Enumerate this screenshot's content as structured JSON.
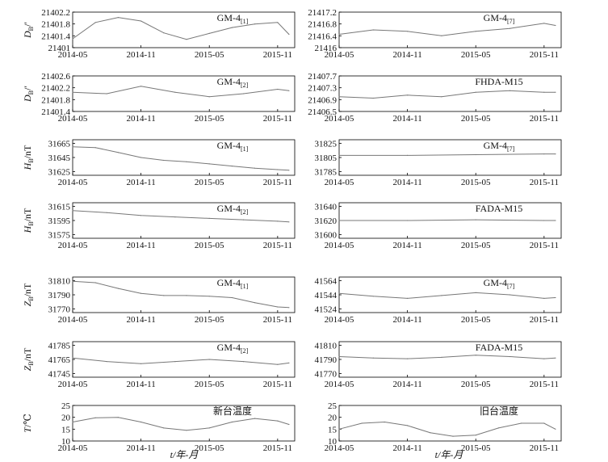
{
  "x_axis_label": "t/年-月",
  "x_tick_labels": [
    "2014-05",
    "2014-11",
    "2015-05",
    "2015-11"
  ],
  "chart_data": [
    {
      "type": "line",
      "column": "left",
      "ylabel_main": "D",
      "ylabel_sub": "B",
      "ylabel_unit": "/′",
      "title_main": "GM-4",
      "title_sub": "[1]",
      "yticks": [
        "21402.2",
        "21401.8",
        "21401.4",
        "21401"
      ],
      "ylim": [
        21401,
        21402.2
      ],
      "x": [
        "2014-05",
        "2014-07",
        "2014-09",
        "2014-11",
        "2015-01",
        "2015-03",
        "2015-05",
        "2015-07",
        "2015-09",
        "2015-11",
        "2015-12"
      ],
      "y": [
        21401.3,
        21401.85,
        21402.02,
        21401.9,
        21401.5,
        21401.28,
        21401.48,
        21401.68,
        21401.8,
        21401.85,
        21401.45
      ]
    },
    {
      "type": "line",
      "column": "right",
      "ylabel_main": "",
      "ylabel_sub": "",
      "ylabel_unit": "",
      "title_main": "GM-4",
      "title_sub": "[7]",
      "yticks": [
        "21417.2",
        "21416.8",
        "21416.4",
        "21416"
      ],
      "ylim": [
        21416,
        21417.2
      ],
      "x": [
        "2014-05",
        "2014-08",
        "2014-11",
        "2015-02",
        "2015-05",
        "2015-08",
        "2015-11",
        "2015-12"
      ],
      "y": [
        21416.45,
        21416.6,
        21416.55,
        21416.4,
        21416.55,
        21416.65,
        21416.82,
        21416.75
      ]
    },
    {
      "type": "line",
      "column": "left",
      "ylabel_main": "D",
      "ylabel_sub": "B",
      "ylabel_unit": "/′",
      "title_main": "GM-4",
      "title_sub": "[2]",
      "yticks": [
        "21402.6",
        "21402.2",
        "21401.8",
        "21401.4"
      ],
      "ylim": [
        21401.4,
        21402.6
      ],
      "x": [
        "2014-05",
        "2014-08",
        "2014-11",
        "2015-02",
        "2015-05",
        "2015-08",
        "2015-11",
        "2015-12"
      ],
      "y": [
        21402.05,
        21402.0,
        21402.25,
        21402.05,
        21401.9,
        21402.0,
        21402.15,
        21402.1
      ]
    },
    {
      "type": "line",
      "column": "right",
      "ylabel_main": "",
      "ylabel_sub": "",
      "ylabel_unit": "",
      "title_main": "FHDA-M15",
      "title_sub": "",
      "yticks": [
        "21407.7",
        "21407.3",
        "21406.9",
        "21406.5"
      ],
      "ylim": [
        21406.5,
        21407.7
      ],
      "x": [
        "2014-05",
        "2014-08",
        "2014-11",
        "2015-02",
        "2015-05",
        "2015-08",
        "2015-11",
        "2015-12"
      ],
      "y": [
        21407.0,
        21406.95,
        21407.05,
        21407.0,
        21407.15,
        21407.2,
        21407.15,
        21407.15
      ]
    },
    {
      "type": "line",
      "column": "left",
      "ylabel_main": "H",
      "ylabel_sub": "B",
      "ylabel_unit": "/nT",
      "title_main": "GM-4",
      "title_sub": "[1]",
      "yticks": [
        "31665",
        "31645",
        "31625"
      ],
      "ylim": [
        31620,
        31670
      ],
      "x": [
        "2014-05",
        "2014-07",
        "2014-09",
        "2014-11",
        "2015-01",
        "2015-03",
        "2015-05",
        "2015-07",
        "2015-09",
        "2015-11",
        "2015-12"
      ],
      "y": [
        31660,
        31659,
        31652,
        31645,
        31641,
        31639,
        31636,
        31633,
        31630,
        31628,
        31627
      ]
    },
    {
      "type": "line",
      "column": "right",
      "ylabel_main": "",
      "ylabel_sub": "",
      "ylabel_unit": "",
      "title_main": "GM-4",
      "title_sub": "[7]",
      "yticks": [
        "31825",
        "31805",
        "31785"
      ],
      "ylim": [
        31780,
        31830
      ],
      "x": [
        "2014-05",
        "2014-11",
        "2015-05",
        "2015-11",
        "2015-12"
      ],
      "y": [
        31808,
        31808,
        31809,
        31810,
        31810
      ]
    },
    {
      "type": "line",
      "column": "left",
      "ylabel_main": "H",
      "ylabel_sub": "B",
      "ylabel_unit": "/nT",
      "title_main": "GM-4",
      "title_sub": "[2]",
      "yticks": [
        "31615",
        "31595",
        "31575"
      ],
      "ylim": [
        31570,
        31620
      ],
      "x": [
        "2014-05",
        "2014-08",
        "2014-11",
        "2015-02",
        "2015-05",
        "2015-08",
        "2015-11",
        "2015-12"
      ],
      "y": [
        31609,
        31606,
        31602,
        31600,
        31598,
        31596,
        31594,
        31593
      ]
    },
    {
      "type": "line",
      "column": "right",
      "ylabel_main": "",
      "ylabel_sub": "",
      "ylabel_unit": "",
      "title_main": "FADA-M15",
      "title_sub": "",
      "yticks": [
        "31640",
        "31620",
        "31600"
      ],
      "ylim": [
        31595,
        31645
      ],
      "x": [
        "2014-05",
        "2014-11",
        "2015-05",
        "2015-11",
        "2015-12"
      ],
      "y": [
        31620,
        31620,
        31621,
        31620,
        31620
      ]
    },
    {
      "type": "line",
      "column": "left",
      "ylabel_main": "Z",
      "ylabel_sub": "B",
      "ylabel_unit": "/nT",
      "title_main": "GM-4",
      "title_sub": "[1]",
      "yticks": [
        "31810",
        "31790",
        "31770"
      ],
      "ylim": [
        31765,
        31815
      ],
      "x": [
        "2014-05",
        "2014-07",
        "2014-09",
        "2014-11",
        "2015-01",
        "2015-03",
        "2015-05",
        "2015-07",
        "2015-09",
        "2015-11",
        "2015-12"
      ],
      "y": [
        31809,
        31807,
        31799,
        31792,
        31789,
        31789,
        31788,
        31786,
        31779,
        31773,
        31772
      ]
    },
    {
      "type": "line",
      "column": "right",
      "ylabel_main": "",
      "ylabel_sub": "",
      "ylabel_unit": "",
      "title_main": "GM-4",
      "title_sub": "[7]",
      "yticks": [
        "41564",
        "41544",
        "41524"
      ],
      "ylim": [
        41519,
        41569
      ],
      "x": [
        "2014-05",
        "2014-08",
        "2014-11",
        "2015-02",
        "2015-05",
        "2015-08",
        "2015-11",
        "2015-12"
      ],
      "y": [
        41546,
        41542,
        41539,
        41543,
        41547,
        41544,
        41539,
        41540
      ]
    },
    {
      "type": "line",
      "column": "left",
      "ylabel_main": "Z",
      "ylabel_sub": "B",
      "ylabel_unit": "/nT",
      "title_main": "GM-4",
      "title_sub": "[2]",
      "yticks": [
        "41785",
        "41765",
        "41745"
      ],
      "ylim": [
        41740,
        41790
      ],
      "x": [
        "2014-05",
        "2014-08",
        "2014-11",
        "2015-02",
        "2015-05",
        "2015-08",
        "2015-11",
        "2015-12"
      ],
      "y": [
        41767,
        41762,
        41759,
        41762,
        41765,
        41762,
        41758,
        41760
      ]
    },
    {
      "type": "line",
      "column": "right",
      "ylabel_main": "",
      "ylabel_sub": "",
      "ylabel_unit": "",
      "title_main": "FADA-M15",
      "title_sub": "",
      "yticks": [
        "41810",
        "41790",
        "41770"
      ],
      "ylim": [
        41765,
        41815
      ],
      "x": [
        "2014-05",
        "2014-08",
        "2014-11",
        "2015-02",
        "2015-05",
        "2015-08",
        "2015-11",
        "2015-12"
      ],
      "y": [
        41794,
        41792,
        41791,
        41793,
        41796,
        41794,
        41791,
        41792
      ]
    },
    {
      "type": "line",
      "column": "left",
      "ylabel_main": "T",
      "ylabel_sub": "",
      "ylabel_unit": "/℃",
      "title_main": "新台温度",
      "title_sub": "",
      "yticks": [
        "25",
        "20",
        "15",
        "10"
      ],
      "ylim": [
        10,
        25
      ],
      "x": [
        "2014-05",
        "2014-07",
        "2014-09",
        "2014-11",
        "2015-01",
        "2015-03",
        "2015-05",
        "2015-07",
        "2015-09",
        "2015-11",
        "2015-12"
      ],
      "y": [
        18,
        19.8,
        20,
        18,
        15.5,
        14.5,
        15.5,
        18,
        19.5,
        18.5,
        17
      ]
    },
    {
      "type": "line",
      "column": "right",
      "ylabel_main": "",
      "ylabel_sub": "",
      "ylabel_unit": "",
      "title_main": "旧台温度",
      "title_sub": "",
      "yticks": [
        "25",
        "20",
        "15",
        "10"
      ],
      "ylim": [
        10,
        25
      ],
      "x": [
        "2014-05",
        "2014-07",
        "2014-09",
        "2014-11",
        "2015-01",
        "2015-03",
        "2015-05",
        "2015-07",
        "2015-09",
        "2015-11",
        "2015-12"
      ],
      "y": [
        15,
        17.5,
        18,
        16.5,
        13.5,
        12,
        12.5,
        15.5,
        17.5,
        17.5,
        15
      ]
    }
  ]
}
